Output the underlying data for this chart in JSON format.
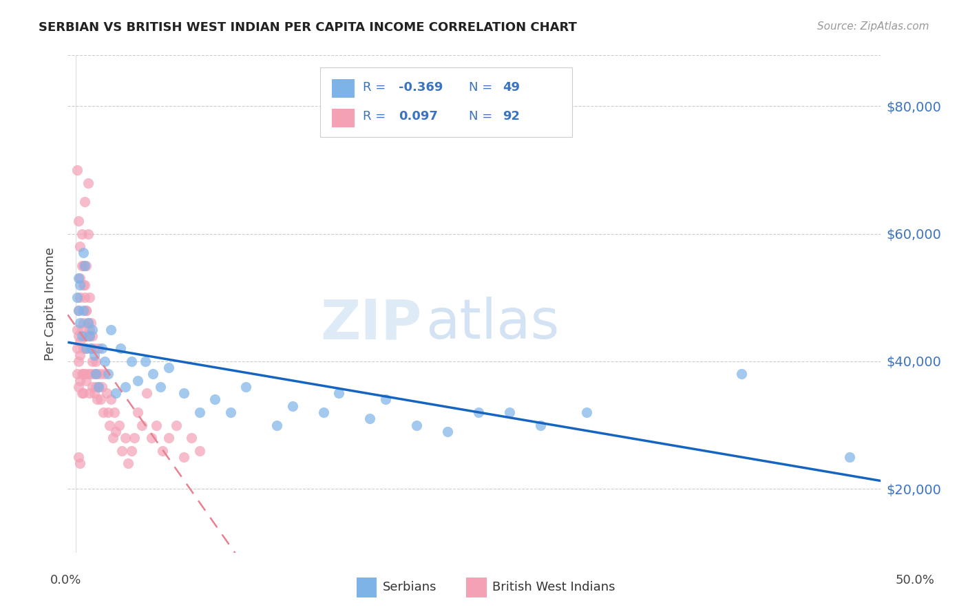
{
  "title": "SERBIAN VS BRITISH WEST INDIAN PER CAPITA INCOME CORRELATION CHART",
  "source": "Source: ZipAtlas.com",
  "ylabel": "Per Capita Income",
  "ytick_labels": [
    "$20,000",
    "$40,000",
    "$60,000",
    "$80,000"
  ],
  "ytick_values": [
    20000,
    40000,
    60000,
    80000
  ],
  "ymin": 10000,
  "ymax": 88000,
  "xmin": -0.005,
  "xmax": 0.52,
  "serbian_color": "#7EB3E8",
  "bwi_color": "#F4A0B5",
  "line_blue": "#1565C0",
  "line_pink": "#E88090",
  "legend_label_serbian": "Serbians",
  "legend_label_bwi": "British West Indians",
  "watermark_zip": "ZIP",
  "watermark_atlas": "atlas",
  "serbian_x": [
    0.001,
    0.002,
    0.002,
    0.003,
    0.003,
    0.004,
    0.005,
    0.005,
    0.006,
    0.007,
    0.008,
    0.009,
    0.01,
    0.011,
    0.012,
    0.013,
    0.015,
    0.017,
    0.019,
    0.021,
    0.023,
    0.026,
    0.029,
    0.032,
    0.036,
    0.04,
    0.045,
    0.05,
    0.055,
    0.06,
    0.07,
    0.08,
    0.09,
    0.1,
    0.11,
    0.13,
    0.14,
    0.16,
    0.17,
    0.19,
    0.2,
    0.22,
    0.24,
    0.26,
    0.28,
    0.3,
    0.33,
    0.43,
    0.5
  ],
  "serbian_y": [
    50000,
    48000,
    53000,
    46000,
    52000,
    44000,
    57000,
    48000,
    55000,
    42000,
    46000,
    44000,
    42000,
    45000,
    41000,
    38000,
    36000,
    42000,
    40000,
    38000,
    45000,
    35000,
    42000,
    36000,
    40000,
    37000,
    40000,
    38000,
    36000,
    39000,
    35000,
    32000,
    34000,
    32000,
    36000,
    30000,
    33000,
    32000,
    35000,
    31000,
    34000,
    30000,
    29000,
    32000,
    32000,
    30000,
    32000,
    38000,
    25000
  ],
  "bwi_x": [
    0.001,
    0.001,
    0.001,
    0.002,
    0.002,
    0.002,
    0.002,
    0.003,
    0.003,
    0.003,
    0.003,
    0.003,
    0.004,
    0.004,
    0.004,
    0.004,
    0.005,
    0.005,
    0.005,
    0.005,
    0.005,
    0.006,
    0.006,
    0.006,
    0.006,
    0.007,
    0.007,
    0.007,
    0.007,
    0.008,
    0.008,
    0.008,
    0.008,
    0.009,
    0.009,
    0.009,
    0.01,
    0.01,
    0.01,
    0.011,
    0.011,
    0.011,
    0.012,
    0.012,
    0.012,
    0.013,
    0.013,
    0.014,
    0.014,
    0.015,
    0.015,
    0.016,
    0.016,
    0.017,
    0.018,
    0.019,
    0.02,
    0.021,
    0.022,
    0.023,
    0.024,
    0.025,
    0.026,
    0.028,
    0.03,
    0.032,
    0.034,
    0.036,
    0.038,
    0.04,
    0.043,
    0.046,
    0.049,
    0.052,
    0.056,
    0.06,
    0.065,
    0.07,
    0.075,
    0.08,
    0.001,
    0.002,
    0.003,
    0.004,
    0.005,
    0.006,
    0.007,
    0.008,
    0.009,
    0.01,
    0.002,
    0.003
  ],
  "bwi_y": [
    38000,
    42000,
    45000,
    40000,
    44000,
    36000,
    48000,
    43000,
    37000,
    50000,
    41000,
    53000,
    38000,
    45000,
    35000,
    60000,
    42000,
    55000,
    38000,
    46000,
    35000,
    52000,
    44000,
    38000,
    65000,
    48000,
    37000,
    55000,
    42000,
    60000,
    44000,
    38000,
    68000,
    45000,
    35000,
    50000,
    42000,
    38000,
    46000,
    40000,
    36000,
    44000,
    38000,
    42000,
    35000,
    40000,
    36000,
    38000,
    34000,
    42000,
    36000,
    38000,
    34000,
    36000,
    32000,
    38000,
    35000,
    32000,
    30000,
    34000,
    28000,
    32000,
    29000,
    30000,
    26000,
    28000,
    24000,
    26000,
    28000,
    32000,
    30000,
    35000,
    28000,
    30000,
    26000,
    28000,
    30000,
    25000,
    28000,
    26000,
    70000,
    62000,
    58000,
    55000,
    52000,
    50000,
    48000,
    46000,
    44000,
    42000,
    25000,
    24000
  ]
}
